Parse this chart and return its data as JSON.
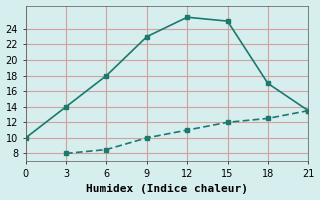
{
  "line1_x": [
    0,
    3,
    6,
    9,
    12,
    15,
    18,
    21
  ],
  "line1_y": [
    10,
    14,
    18,
    23,
    25.5,
    25,
    17,
    13.5
  ],
  "line2_x": [
    3,
    6,
    9,
    12,
    15,
    18,
    21
  ],
  "line2_y": [
    8,
    8.5,
    10,
    11,
    12,
    12.5,
    13.5
  ],
  "line_color": "#1a7a6e",
  "bg_color": "#d6eeee",
  "grid_color": "#d4a0a0",
  "xlabel": "Humidex (Indice chaleur)",
  "xlim": [
    0,
    21
  ],
  "ylim": [
    7,
    27
  ],
  "xticks": [
    0,
    3,
    6,
    9,
    12,
    15,
    18,
    21
  ],
  "yticks": [
    8,
    10,
    12,
    14,
    16,
    18,
    20,
    22,
    24
  ],
  "tick_fontsize": 7,
  "xlabel_fontsize": 8
}
